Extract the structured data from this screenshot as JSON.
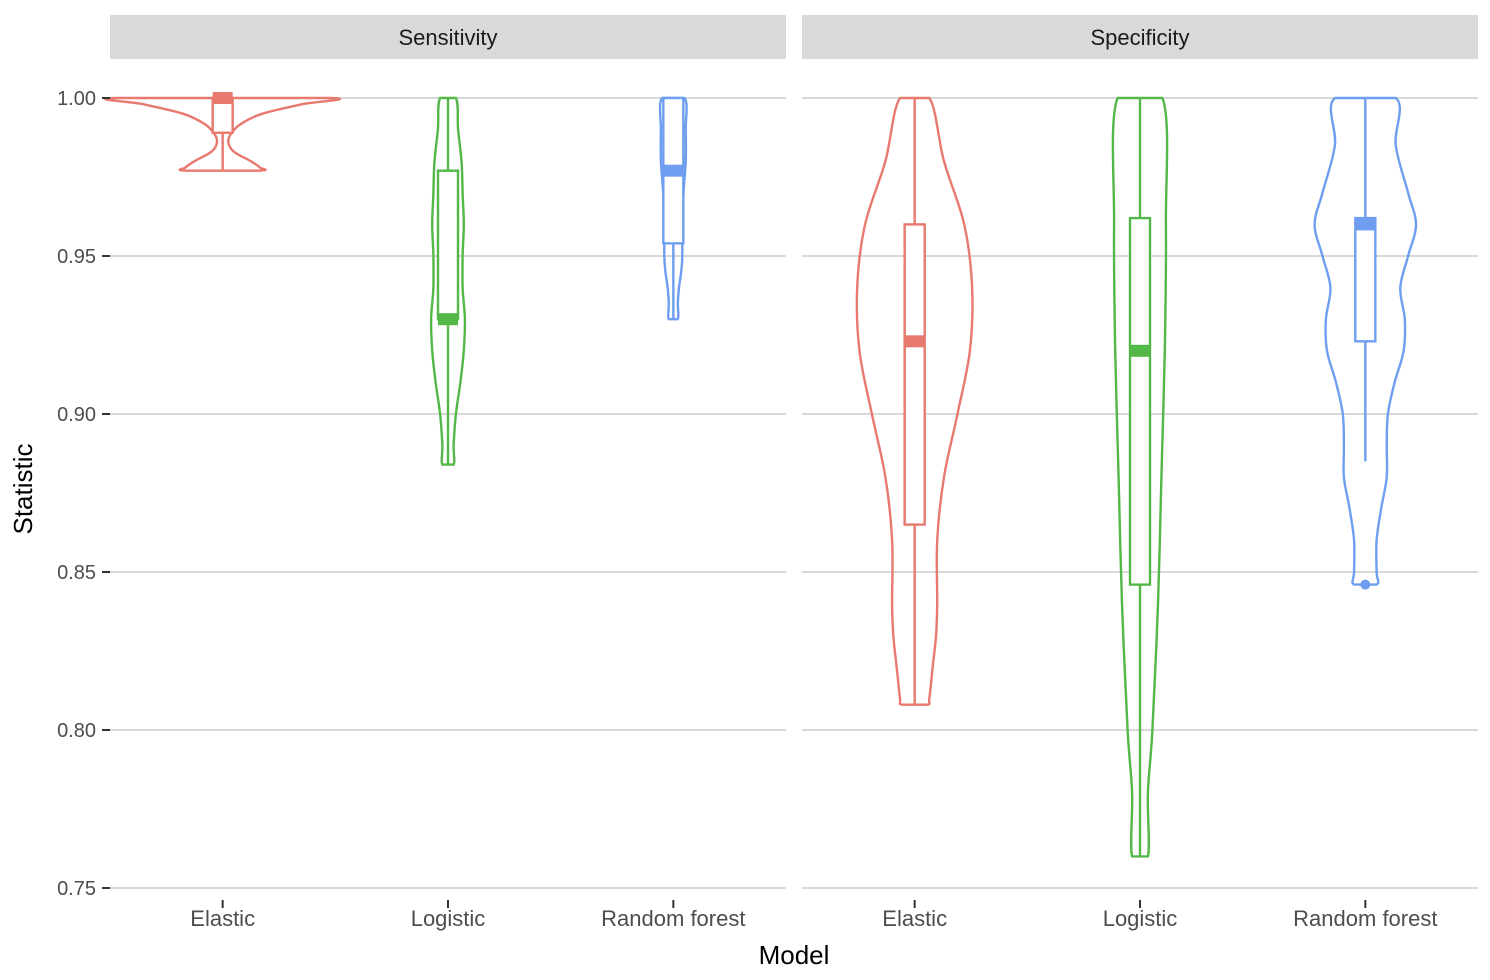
{
  "chart_data": {
    "type": "violin",
    "xlabel": "Model",
    "ylabel": "Statistic",
    "ylim": [
      0.75,
      1.0
    ],
    "yticks": [
      "0.75",
      "0.80",
      "0.85",
      "0.90",
      "0.95",
      "1.00"
    ],
    "categories": [
      "Elastic",
      "Logistic",
      "Random forest"
    ],
    "colors": {
      "Elastic": "#e8796f",
      "Logistic": "#54b848",
      "Random forest": "#6f9ef0"
    },
    "grid": true,
    "legend": "none",
    "facets": [
      {
        "label": "Sensitivity",
        "groups": [
          {
            "model": "Elastic",
            "box": {
              "min": 0.977,
              "q1": 0.989,
              "median": 1.0,
              "q3": 1.0,
              "max": 1.0
            },
            "outliers": [],
            "violin": [
              [
                1.0,
                0.95
              ],
              [
                0.998,
                0.7
              ],
              [
                0.995,
                0.35
              ],
              [
                0.992,
                0.17
              ],
              [
                0.989,
                0.08
              ],
              [
                0.986,
                0.05
              ],
              [
                0.983,
                0.1
              ],
              [
                0.98,
                0.25
              ],
              [
                0.978,
                0.33
              ],
              [
                0.977,
                0.33
              ]
            ]
          },
          {
            "model": "Logistic",
            "box": {
              "min": 0.884,
              "q1": 0.93,
              "median": 0.93,
              "q3": 0.977,
              "max": 1.0
            },
            "outliers": [],
            "violin": [
              [
                1.0,
                0.07
              ],
              [
                0.99,
                0.09
              ],
              [
                0.98,
                0.12
              ],
              [
                0.97,
                0.13
              ],
              [
                0.96,
                0.14
              ],
              [
                0.95,
                0.13
              ],
              [
                0.94,
                0.13
              ],
              [
                0.93,
                0.15
              ],
              [
                0.92,
                0.14
              ],
              [
                0.91,
                0.11
              ],
              [
                0.9,
                0.07
              ],
              [
                0.89,
                0.05
              ],
              [
                0.884,
                0.05
              ]
            ]
          },
          {
            "model": "Random forest",
            "box": {
              "min": 0.93,
              "q1": 0.954,
              "median": 0.977,
              "q3": 1.0,
              "max": 1.0
            },
            "outliers": [],
            "violin": [
              [
                1.0,
                0.1
              ],
              [
                0.99,
                0.11
              ],
              [
                0.98,
                0.11
              ],
              [
                0.97,
                0.09
              ],
              [
                0.96,
                0.08
              ],
              [
                0.95,
                0.08
              ],
              [
                0.945,
                0.07
              ],
              [
                0.94,
                0.05
              ],
              [
                0.935,
                0.04
              ],
              [
                0.93,
                0.04
              ]
            ]
          }
        ]
      },
      {
        "label": "Specificity",
        "groups": [
          {
            "model": "Elastic",
            "box": {
              "min": 0.808,
              "q1": 0.865,
              "median": 0.923,
              "q3": 0.96,
              "max": 1.0
            },
            "outliers": [],
            "violin": [
              [
                1.0,
                0.13
              ],
              [
                0.98,
                0.26
              ],
              [
                0.96,
                0.44
              ],
              [
                0.94,
                0.51
              ],
              [
                0.92,
                0.49
              ],
              [
                0.9,
                0.38
              ],
              [
                0.88,
                0.26
              ],
              [
                0.86,
                0.2
              ],
              [
                0.84,
                0.2
              ],
              [
                0.83,
                0.19
              ],
              [
                0.82,
                0.16
              ],
              [
                0.81,
                0.13
              ],
              [
                0.808,
                0.11
              ]
            ]
          },
          {
            "model": "Logistic",
            "box": {
              "min": 0.76,
              "q1": 0.846,
              "median": 0.92,
              "q3": 0.962,
              "max": 1.0
            },
            "outliers": [],
            "violin": [
              [
                1.0,
                0.2
              ],
              [
                0.96,
                0.23
              ],
              [
                0.92,
                0.22
              ],
              [
                0.88,
                0.19
              ],
              [
                0.84,
                0.16
              ],
              [
                0.8,
                0.11
              ],
              [
                0.78,
                0.07
              ],
              [
                0.76,
                0.07
              ]
            ]
          },
          {
            "model": "Random forest",
            "box": {
              "min": 0.885,
              "q1": 0.923,
              "median": 0.96,
              "q3": 0.962,
              "max": 1.0
            },
            "outliers": [
              0.846
            ],
            "violin": [
              [
                1.0,
                0.27
              ],
              [
                0.985,
                0.27
              ],
              [
                0.97,
                0.38
              ],
              [
                0.96,
                0.45
              ],
              [
                0.95,
                0.38
              ],
              [
                0.94,
                0.31
              ],
              [
                0.93,
                0.35
              ],
              [
                0.92,
                0.34
              ],
              [
                0.91,
                0.26
              ],
              [
                0.9,
                0.2
              ],
              [
                0.89,
                0.19
              ],
              [
                0.88,
                0.19
              ],
              [
                0.87,
                0.14
              ],
              [
                0.86,
                0.1
              ],
              [
                0.85,
                0.1
              ],
              [
                0.846,
                0.1
              ]
            ]
          }
        ]
      }
    ]
  }
}
